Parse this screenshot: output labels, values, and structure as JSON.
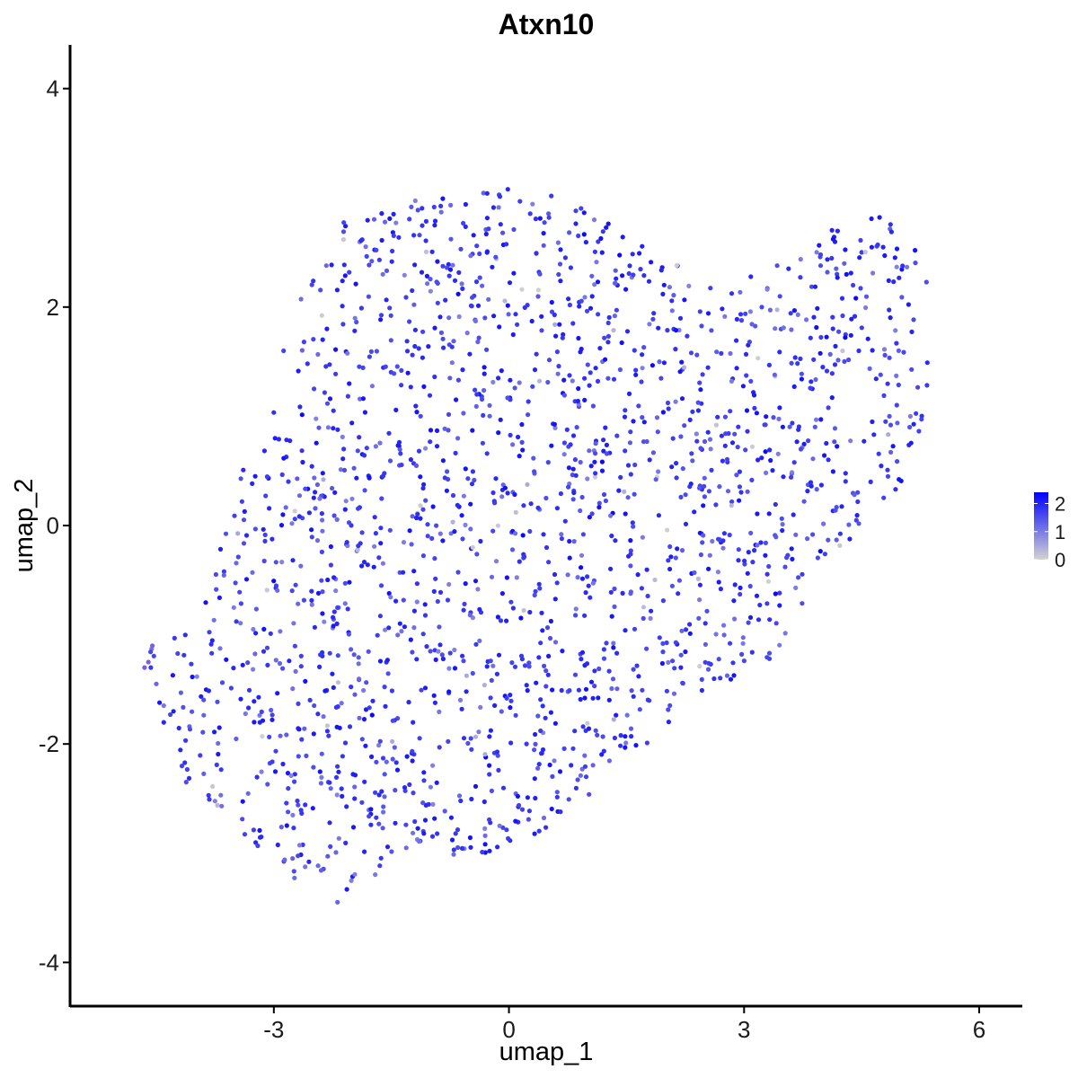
{
  "chart_data": {
    "type": "scatter",
    "title": "Atxn10",
    "xlabel": "umap_1",
    "ylabel": "umap_2",
    "xlim": [
      -5.6,
      6.55
    ],
    "ylim": [
      -4.4,
      4.4
    ],
    "xticks": [
      -3,
      0,
      3,
      6
    ],
    "yticks": [
      -4,
      -2,
      0,
      2,
      4
    ],
    "xtick_labels": [
      "-3",
      "0",
      "3",
      "6"
    ],
    "ytick_labels": [
      "-4",
      "-2",
      "0",
      "2",
      "4"
    ],
    "grid": false,
    "legend_placement": "right",
    "color_scale": {
      "low": "#D3D3D3",
      "high": "#0000FF",
      "min": 0,
      "max": 2.4,
      "ticks": [
        0,
        1,
        2
      ],
      "tick_labels": [
        "0",
        "1",
        "2"
      ]
    },
    "point_count_estimate": 2000,
    "points_note_outline": [
      [
        -3.6,
        0.2
      ],
      [
        -2.6,
        2.2
      ],
      [
        -2.1,
        2.8
      ],
      [
        -1.3,
        3.0
      ],
      [
        0.2,
        3.15
      ],
      [
        1.1,
        2.9
      ],
      [
        2.6,
        2.2
      ],
      [
        3.8,
        2.5
      ],
      [
        4.5,
        3.05
      ],
      [
        5.35,
        2.4
      ],
      [
        5.35,
        1.0
      ],
      [
        4.9,
        0.2
      ],
      [
        3.9,
        -0.5
      ],
      [
        3.4,
        -1.2
      ],
      [
        2.4,
        -1.6
      ],
      [
        1.6,
        -2.1
      ],
      [
        0.8,
        -2.6
      ],
      [
        0.0,
        -3.0
      ],
      [
        -1.3,
        -3.05
      ],
      [
        -2.3,
        -3.5
      ],
      [
        -3.1,
        -3.0
      ],
      [
        -4.2,
        -2.3
      ],
      [
        -4.7,
        -1.3
      ],
      [
        -4.6,
        -1.1
      ],
      [
        -3.9,
        -0.8
      ]
    ]
  }
}
